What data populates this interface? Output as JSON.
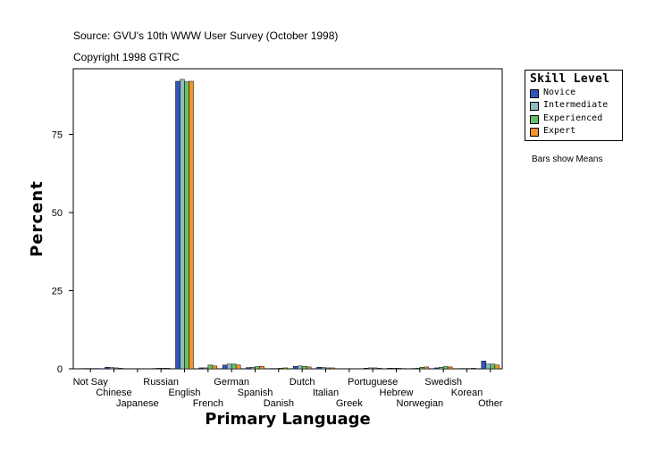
{
  "header": {
    "source": "Source: GVU's 10th WWW User Survey (October 1998)",
    "copyright": "Copyright 1998 GTRC"
  },
  "legend": {
    "title": "Skill Level",
    "items": [
      {
        "label": "Novice",
        "color": "#3355bb"
      },
      {
        "label": "Intermediate",
        "color": "#8fbdbd"
      },
      {
        "label": "Experienced",
        "color": "#66c266"
      },
      {
        "label": "Expert",
        "color": "#f2962a"
      }
    ]
  },
  "note": "Bars show Means",
  "chart_data": {
    "type": "bar",
    "xlabel": "Primary Language",
    "ylabel": "Percent",
    "ylim": [
      0,
      96
    ],
    "yticks": [
      0,
      25,
      50,
      75
    ],
    "grid": false,
    "legend_position": "right",
    "categories": [
      "Not Say",
      "Chinese",
      "Japanese",
      "Russian",
      "English",
      "French",
      "German",
      "Spanish",
      "Danish",
      "Dutch",
      "Italian",
      "Greek",
      "Portuguese",
      "Hebrew",
      "Norwegian",
      "Swedish",
      "Korean",
      "Other"
    ],
    "series": [
      {
        "name": "Novice",
        "color": "#3355bb",
        "values": [
          0.1,
          0.5,
          0.0,
          0.1,
          92.0,
          0.3,
          1.2,
          0.4,
          0.1,
          0.8,
          0.5,
          0.0,
          0.2,
          0.2,
          0.1,
          0.3,
          0.1,
          2.5
        ]
      },
      {
        "name": "Intermediate",
        "color": "#8fbdbd",
        "values": [
          0.1,
          0.4,
          0.0,
          0.2,
          92.6,
          0.3,
          1.5,
          0.5,
          0.1,
          0.9,
          0.4,
          0.0,
          0.3,
          0.2,
          0.2,
          0.5,
          0.1,
          1.5
        ]
      },
      {
        "name": "Experienced",
        "color": "#66c266",
        "values": [
          0.1,
          0.3,
          0.0,
          0.2,
          91.8,
          1.2,
          1.5,
          0.7,
          0.2,
          0.8,
          0.3,
          0.0,
          0.3,
          0.2,
          0.5,
          0.7,
          0.1,
          1.5
        ]
      },
      {
        "name": "Expert",
        "color": "#f2962a",
        "values": [
          0.1,
          0.2,
          0.0,
          0.2,
          92.0,
          0.9,
          1.2,
          0.8,
          0.3,
          0.6,
          0.3,
          0.0,
          0.2,
          0.1,
          0.6,
          0.6,
          0.2,
          1.2
        ]
      }
    ]
  }
}
